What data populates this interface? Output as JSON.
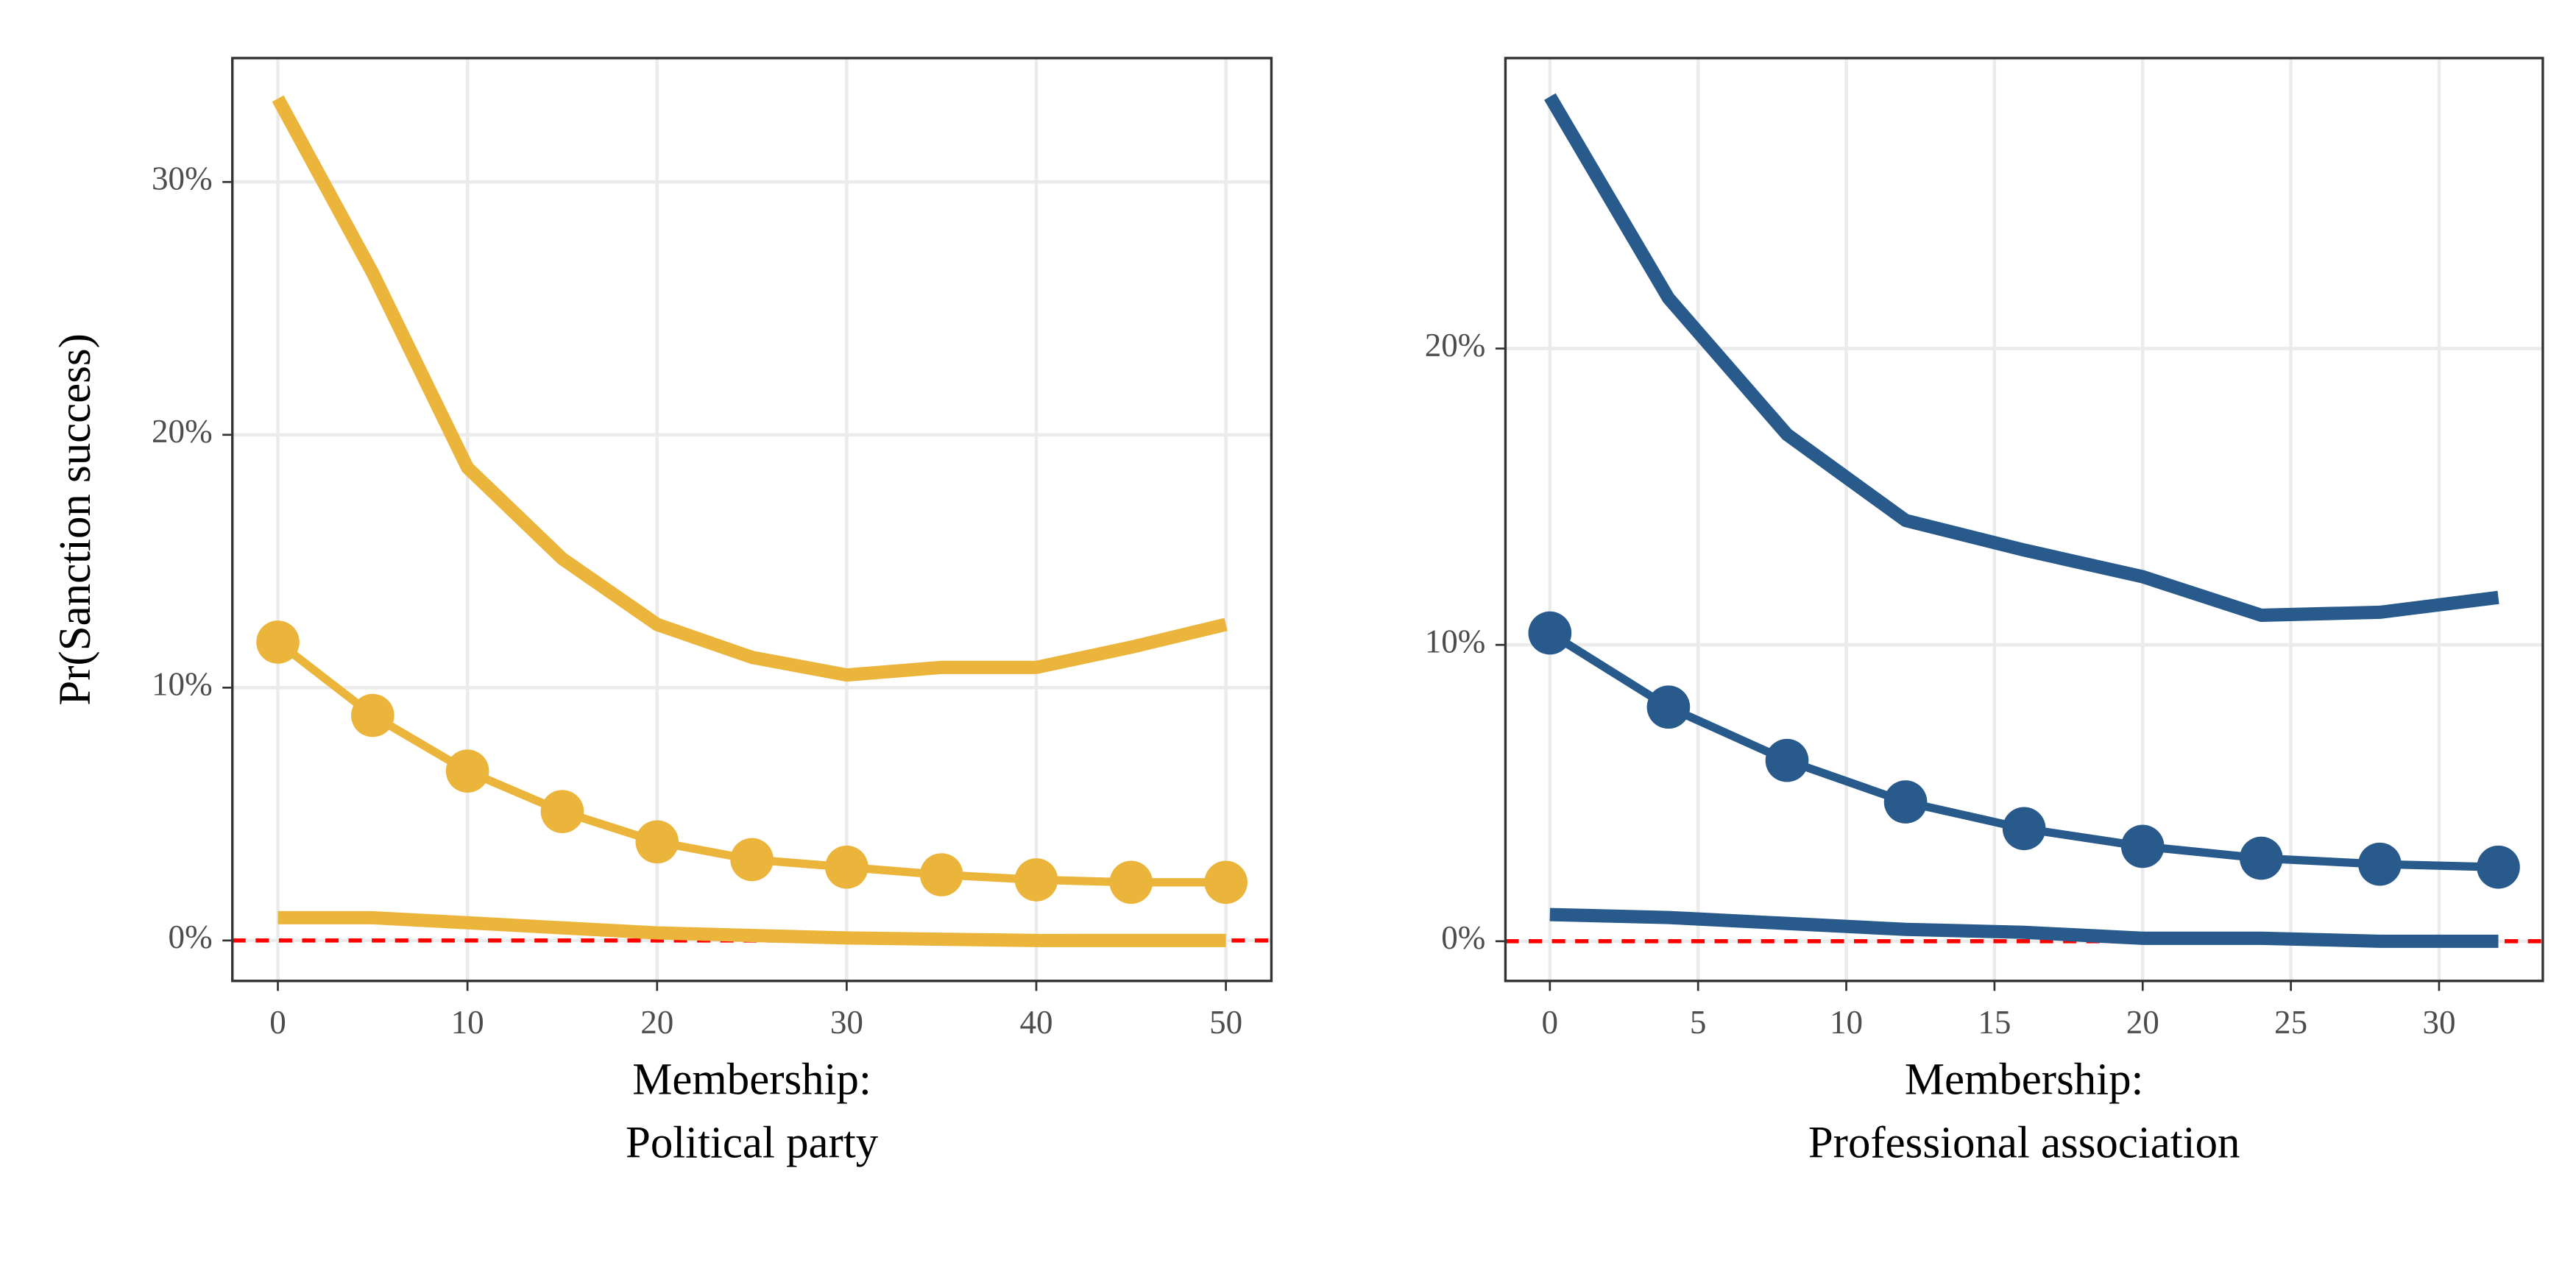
{
  "chart_data": [
    {
      "type": "line",
      "y_label": "Pr(Sanction success)",
      "x_label": [
        "Membership:",
        "Political party"
      ],
      "x": [
        0,
        5,
        10,
        15,
        20,
        25,
        30,
        35,
        40,
        45,
        50
      ],
      "series": [
        {
          "color": "#ebb53b",
          "values": [
            33.3,
            26.4,
            18.7,
            15.1,
            12.5,
            11.2,
            10.5,
            10.8,
            10.8,
            11.6,
            12.5
          ]
        },
        {
          "color": "#ebb53b",
          "markers": true,
          "values": [
            11.8,
            8.9,
            6.7,
            5.1,
            3.9,
            3.2,
            2.9,
            2.6,
            2.4,
            2.3,
            2.3
          ]
        },
        {
          "color": "#ebb53b",
          "values": [
            0.9,
            0.9,
            0.7,
            0.5,
            0.3,
            0.2,
            0.1,
            0.05,
            0,
            0,
            0
          ]
        }
      ],
      "xlim": [
        -2.4,
        52.4
      ],
      "xticks": [
        0,
        10,
        20,
        30,
        40,
        50
      ],
      "ylim": [
        -1.6,
        34.9
      ],
      "yticks": [
        {
          "value": 0,
          "label": "0%"
        },
        {
          "value": 10,
          "label": "10%"
        },
        {
          "value": 20,
          "label": "20%"
        },
        {
          "value": 30,
          "label": "30%"
        }
      ],
      "hline": 0,
      "hline_color": "#ff0000",
      "grid": true
    },
    {
      "type": "line",
      "x_label": [
        "Membership:",
        "Professional association"
      ],
      "x": [
        0,
        4,
        8,
        12,
        16,
        20,
        24,
        28,
        32
      ],
      "series": [
        {
          "color": "#285a8c",
          "values": [
            28.5,
            21.7,
            17.1,
            14.2,
            13.2,
            12.3,
            11.0,
            11.1,
            11.6
          ]
        },
        {
          "color": "#285a8c",
          "markers": true,
          "values": [
            10.4,
            7.9,
            6.1,
            4.7,
            3.8,
            3.2,
            2.8,
            2.6,
            2.5
          ]
        },
        {
          "color": "#285a8c",
          "values": [
            0.9,
            0.8,
            0.6,
            0.4,
            0.3,
            0.1,
            0.1,
            0,
            0
          ]
        }
      ],
      "xlim": [
        -1.5,
        33.5
      ],
      "xticks": [
        0,
        5,
        10,
        15,
        20,
        25,
        30
      ],
      "ylim": [
        -1.34,
        29.8
      ],
      "yticks": [
        {
          "value": 0,
          "label": "0%"
        },
        {
          "value": 10,
          "label": "10%"
        },
        {
          "value": 20,
          "label": "20%"
        }
      ],
      "hline": 0,
      "hline_color": "#ff0000",
      "grid": true
    }
  ]
}
